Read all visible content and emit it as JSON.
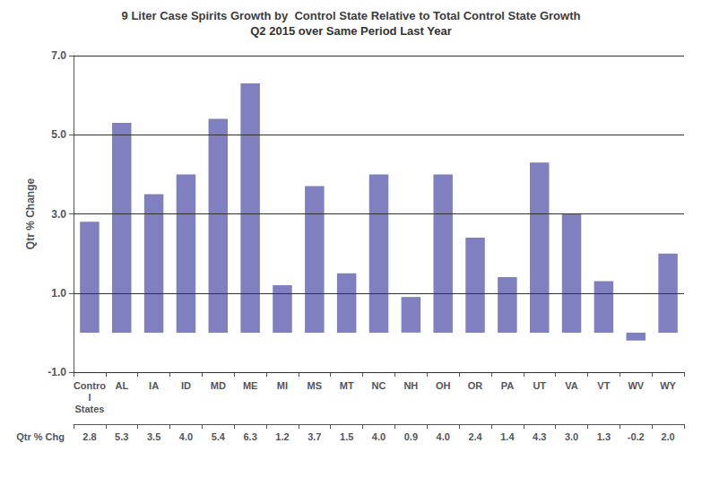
{
  "chart_data": {
    "type": "bar",
    "title": "9 Liter Case Spirits Growth by  Control State Relative to Total Control State Growth",
    "subtitle": "Q2 2015 over Same Period Last Year",
    "ylabel": "Qtr % Change",
    "categories": [
      "Contro\nl\nStates",
      "AL",
      "IA",
      "ID",
      "MD",
      "ME",
      "MI",
      "MS",
      "MT",
      "NC",
      "NH",
      "OH",
      "OR",
      "PA",
      "UT",
      "VA",
      "VT",
      "WV",
      "WY"
    ],
    "values": [
      2.8,
      5.3,
      3.5,
      4.0,
      5.4,
      6.3,
      1.2,
      3.7,
      1.5,
      4.0,
      0.9,
      4.0,
      2.4,
      1.4,
      4.3,
      3.0,
      1.3,
      -0.2,
      2.0
    ],
    "value_labels": [
      "2.8",
      "5.3",
      "3.5",
      "4.0",
      "5.4",
      "6.3",
      "1.2",
      "3.7",
      "1.5",
      "4.0",
      "0.9",
      "4.0",
      "2.4",
      "1.4",
      "4.3",
      "3.0",
      "1.3",
      "-0.2",
      "2.0"
    ],
    "color": "#8080c0",
    "ylim": [
      -1.0,
      7.0
    ],
    "yticks": [
      {
        "value": -1.0,
        "label": "-1.0"
      },
      {
        "value": 1.0,
        "label": "1.0"
      },
      {
        "value": 3.0,
        "label": "3.0"
      },
      {
        "value": 5.0,
        "label": "5.0"
      },
      {
        "value": 7.0,
        "label": "7.0"
      }
    ],
    "grid": true,
    "annotations": [
      "Qtr % Chg"
    ]
  }
}
